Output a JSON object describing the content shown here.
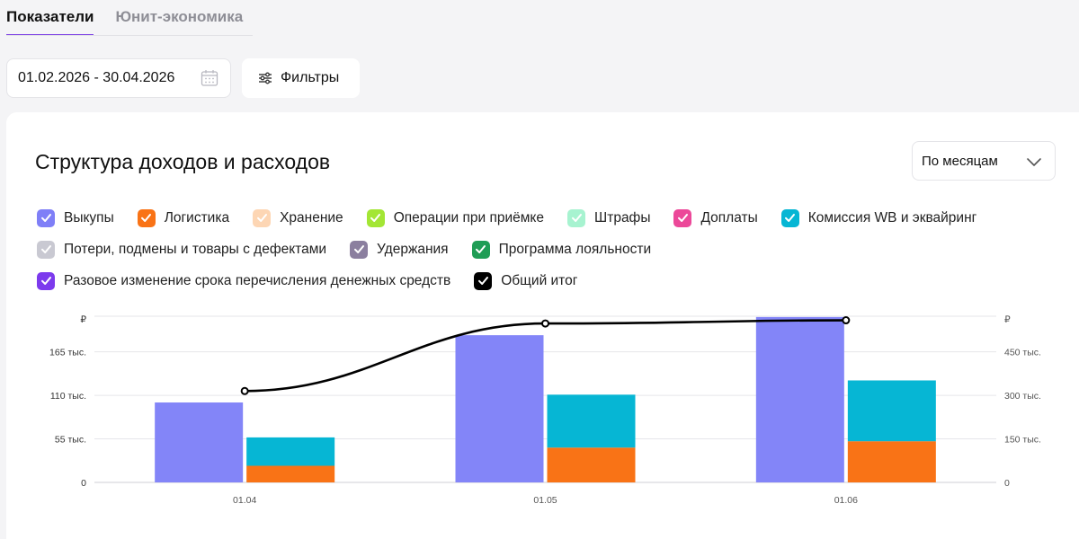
{
  "tabs": {
    "indicators": "Показатели",
    "unit_economics": "Юнит-экономика"
  },
  "date_range": {
    "value": "01.02.2026 - 30.04.2026"
  },
  "filters": {
    "label": "Фильтры"
  },
  "card": {
    "title": "Структура доходов и расходов",
    "period_select": "По месяцам"
  },
  "legend": [
    [
      {
        "label": "Выкупы",
        "color": "#7f7ff7",
        "icon": "check-icon"
      },
      {
        "label": "Логистика",
        "color": "#f97316",
        "icon": "check-icon"
      },
      {
        "label": "Хранение",
        "color": "#fdd6b4",
        "icon": "check-icon"
      },
      {
        "label": "Операции при приёмке",
        "color": "#a3e635",
        "icon": "check-icon"
      },
      {
        "label": "Штрафы",
        "color": "#a7f3d0",
        "icon": "check-icon"
      },
      {
        "label": "Доплаты",
        "color": "#ec4899",
        "icon": "check-icon"
      },
      {
        "label": "Комиссия WB и эквайринг",
        "color": "#06b6d4",
        "icon": "check-icon"
      }
    ],
    [
      {
        "label": "Потери, подмены и товары с дефектами",
        "color": "#c9c9d2",
        "icon": "check-icon"
      },
      {
        "label": "Удержания",
        "color": "#8b7f9f",
        "icon": "check-icon"
      },
      {
        "label": "Программа лояльности",
        "color": "#1f9d55",
        "icon": "check-icon"
      }
    ],
    [
      {
        "label": "Разовое изменение срока перечисления денежных средств",
        "color": "#7c3aed",
        "icon": "check-icon"
      },
      {
        "label": "Общий итог",
        "color": "#000000",
        "icon": "check-icon"
      }
    ]
  ],
  "chart_data": {
    "type": "bar",
    "categories": [
      "01.04",
      "01.05",
      "01.06"
    ],
    "y_left": {
      "unit": "₽",
      "ticks": [
        "0",
        "55 тыс.",
        "110 тыс.",
        "165 тыс."
      ],
      "tick_values": [
        0,
        55000,
        110000,
        165000
      ],
      "ylim": [
        0,
        210000
      ]
    },
    "y_right": {
      "unit": "₽",
      "ticks": [
        "0",
        "150 тыс.",
        "300 тыс.",
        "450 тыс."
      ],
      "tick_values": [
        0,
        150000,
        300000,
        450000
      ],
      "ylim": [
        0,
        573000
      ]
    },
    "series": [
      {
        "name": "Выкупы",
        "stack": "income",
        "axis": "left",
        "color": "#8385f8",
        "values": [
          101000,
          186000,
          209000
        ]
      },
      {
        "name": "Логистика",
        "stack": "expense",
        "axis": "left",
        "color": "#f97316",
        "values": [
          21000,
          44000,
          52000
        ]
      },
      {
        "name": "Комиссия WB и эквайринг",
        "stack": "expense",
        "axis": "left",
        "color": "#06b6d4",
        "values": [
          37000,
          68000,
          78000
        ]
      },
      {
        "name": "Общий итог",
        "type": "line",
        "axis": "right",
        "color": "#000000",
        "values": [
          315000,
          548000,
          559000
        ]
      }
    ],
    "grid": true,
    "legend_position": "top"
  }
}
